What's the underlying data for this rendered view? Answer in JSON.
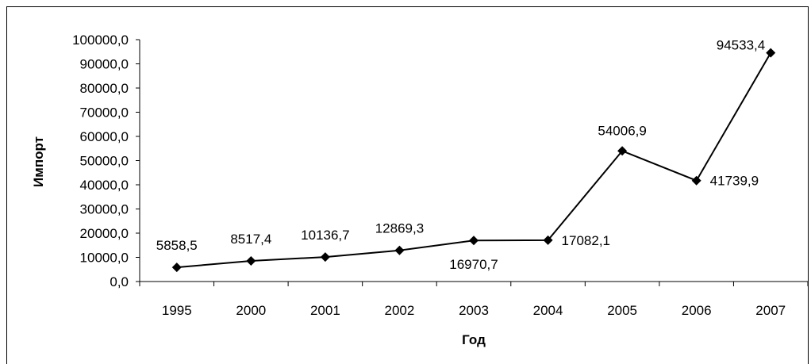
{
  "chart_data": {
    "type": "line",
    "title": "",
    "xlabel": "Год",
    "ylabel": "Импорт",
    "categories": [
      "1995",
      "2000",
      "2001",
      "2002",
      "2003",
      "2004",
      "2005",
      "2006",
      "2007"
    ],
    "series": [
      {
        "values": [
          5858.5,
          8517.4,
          10136.7,
          12869.3,
          16970.7,
          17082.1,
          54006.9,
          41739.9,
          94533.4
        ],
        "labels": [
          "5858,5",
          "8517,4",
          "10136,7",
          "12869,3",
          "16970,7",
          "17082,1",
          "54006,9",
          "41739,9",
          "94533,4"
        ],
        "color": "#000000",
        "marker": "diamond"
      }
    ],
    "ylim": [
      0,
      100000
    ],
    "y_ticks": [
      "0,0",
      "10000,0",
      "20000,0",
      "30000,0",
      "40000,0",
      "50000,0",
      "60000,0",
      "70000,0",
      "80000,0",
      "90000,0",
      "100000,0"
    ],
    "grid": false,
    "legend": "none"
  }
}
